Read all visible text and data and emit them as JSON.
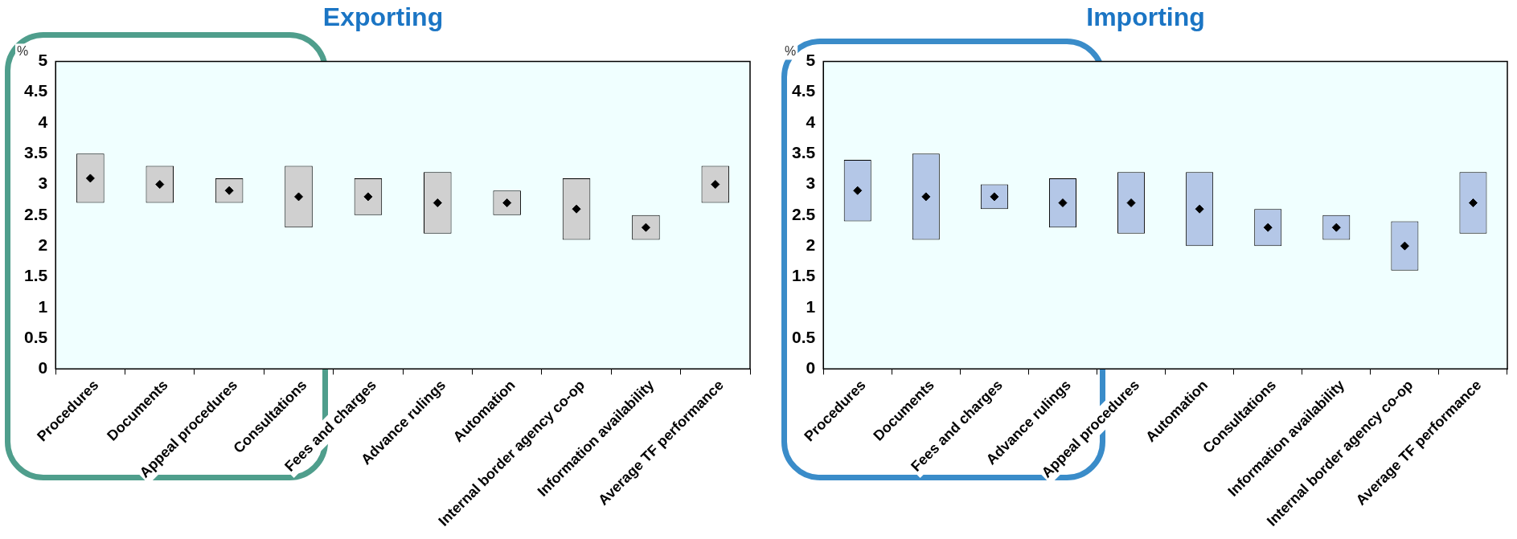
{
  "chart_data": [
    {
      "type": "bar",
      "title": "Exporting",
      "ylabel": "%",
      "categories": [
        "Procedures",
        "Documents",
        "Appeal procedures",
        "Consultations",
        "Fees and charges",
        "Advance rulings",
        "Automation",
        "Internal border agency co-op",
        "Information availability",
        "Average TF performance"
      ],
      "series": [
        {
          "color": "#d0d0d0",
          "base": [
            2.7,
            2.7,
            2.7,
            2.3,
            2.5,
            2.2,
            2.5,
            2.1,
            2.1,
            2.7
          ],
          "values": [
            0.8,
            0.6,
            0.4,
            1.0,
            0.6,
            1.0,
            0.4,
            1.0,
            0.4,
            0.6
          ]
        },
        {
          "type": "scatter",
          "marker": "diamond",
          "color": "#000000",
          "x": [
            "Procedures",
            "Documents",
            "Appeal procedures",
            "Consultations",
            "Fees and charges",
            "Advance rulings",
            "Automation",
            "Internal border agency co-op",
            "Information availability",
            "Average TF performance"
          ],
          "values": [
            3.1,
            3.0,
            2.9,
            2.8,
            2.8,
            2.7,
            2.7,
            2.6,
            2.3,
            3.0
          ]
        }
      ],
      "ylim": [
        0,
        5
      ],
      "yticks": [
        0,
        0.5,
        1,
        1.5,
        2,
        2.5,
        3,
        3.5,
        4,
        4.5,
        5
      ],
      "legend": false
    },
    {
      "type": "bar",
      "title": "Importing",
      "ylabel": "%",
      "categories": [
        "Procedures",
        "Documents",
        "Fees and charges",
        "Advance rulings",
        "Appeal procedures",
        "Automation",
        "Consultations",
        "Information availability",
        "Internal border agency co-op",
        "Average TF performance"
      ],
      "series": [
        {
          "color": "#b4c7e7",
          "base": [
            2.4,
            2.1,
            2.6,
            2.3,
            2.2,
            2.0,
            2.0,
            2.1,
            1.6,
            2.2
          ],
          "values": [
            1.0,
            1.4,
            0.4,
            0.8,
            1.0,
            1.2,
            0.6,
            0.4,
            0.8,
            1.0
          ]
        },
        {
          "type": "scatter",
          "marker": "diamond",
          "color": "#000000",
          "x": [
            "Procedures",
            "Documents",
            "Fees and charges",
            "Advance rulings",
            "Appeal procedures",
            "Automation",
            "Consultations",
            "Information availability",
            "Internal border agency co-op",
            "Average TF performance"
          ],
          "values": [
            2.9,
            2.8,
            2.8,
            2.7,
            2.7,
            2.6,
            2.3,
            2.3,
            2.0,
            2.7
          ]
        }
      ],
      "ylim": [
        0,
        5
      ],
      "yticks": [
        0,
        0.5,
        1,
        1.5,
        2,
        2.5,
        3,
        3.5,
        4,
        4.5,
        5
      ],
      "legend": false
    }
  ]
}
